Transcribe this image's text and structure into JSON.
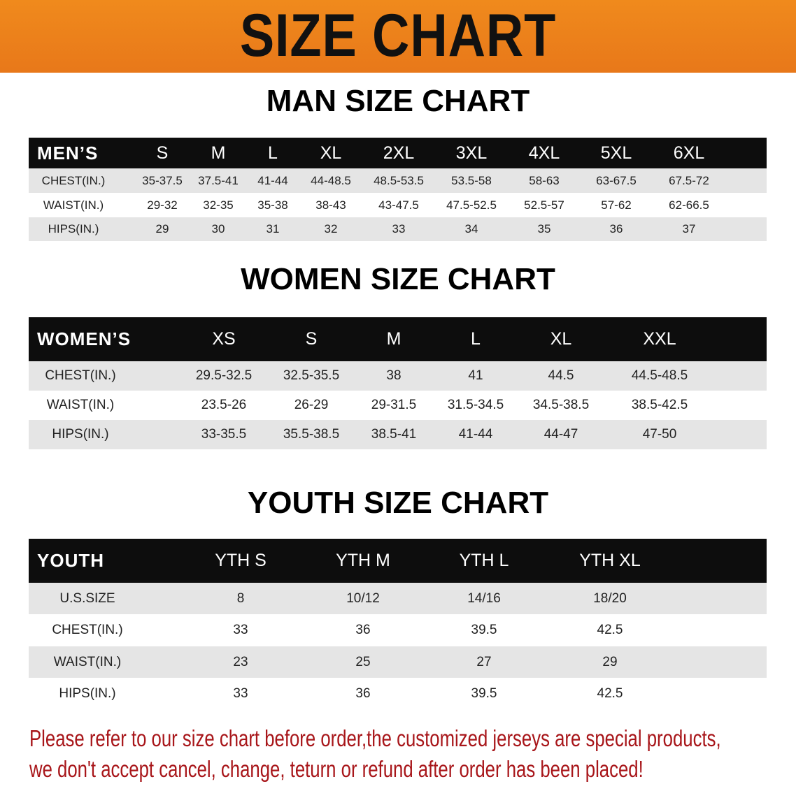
{
  "banner": {
    "title": "SIZE CHART",
    "color": "#ec821b"
  },
  "men": {
    "title": "MAN SIZE CHART",
    "header": [
      "MEN’S",
      "S",
      "M",
      "L",
      "XL",
      "2XL",
      "3XL",
      "4XL",
      "5XL",
      "6XL"
    ],
    "rows": [
      [
        "CHEST(IN.)",
        "35-37.5",
        "37.5-41",
        "41-44",
        "44-48.5",
        "48.5-53.5",
        "53.5-58",
        "58-63",
        "63-67.5",
        "67.5-72"
      ],
      [
        "WAIST(IN.)",
        "29-32",
        "32-35",
        "35-38",
        "38-43",
        "43-47.5",
        "47.5-52.5",
        "52.5-57",
        "57-62",
        "62-66.5"
      ],
      [
        "HIPS(IN.)",
        "29",
        "30",
        "31",
        "32",
        "33",
        "34",
        "35",
        "36",
        "37"
      ]
    ]
  },
  "women": {
    "title": "WOMEN SIZE CHART",
    "header": [
      "WOMEN’S",
      "XS",
      "S",
      "M",
      "L",
      "XL",
      "XXL"
    ],
    "rows": [
      [
        "CHEST(IN.)",
        "29.5-32.5",
        "32.5-35.5",
        "38",
        "41",
        "44.5",
        "44.5-48.5"
      ],
      [
        "WAIST(IN.)",
        "23.5-26",
        "26-29",
        "29-31.5",
        "31.5-34.5",
        "34.5-38.5",
        "38.5-42.5"
      ],
      [
        "HIPS(IN.)",
        "33-35.5",
        "35.5-38.5",
        "38.5-41",
        "41-44",
        "44-47",
        "47-50"
      ]
    ]
  },
  "youth": {
    "title": "YOUTH SIZE CHART",
    "header": [
      "YOUTH",
      "YTH S",
      "YTH M",
      "YTH L",
      "YTH XL"
    ],
    "rows": [
      [
        "U.S.SIZE",
        "8",
        "10/12",
        "14/16",
        "18/20"
      ],
      [
        "CHEST(IN.)",
        "33",
        "36",
        "39.5",
        "42.5"
      ],
      [
        "WAIST(IN.)",
        "23",
        "25",
        "27",
        "29"
      ],
      [
        "HIPS(IN.)",
        "33",
        "36",
        "39.5",
        "42.5"
      ]
    ]
  },
  "notice": {
    "line1": "Please refer to our size chart before order,the customized jerseys are special products,",
    "line2": "we don't accept cancel, change, teturn or refund after order has been placed!",
    "color": "#a8161a"
  }
}
